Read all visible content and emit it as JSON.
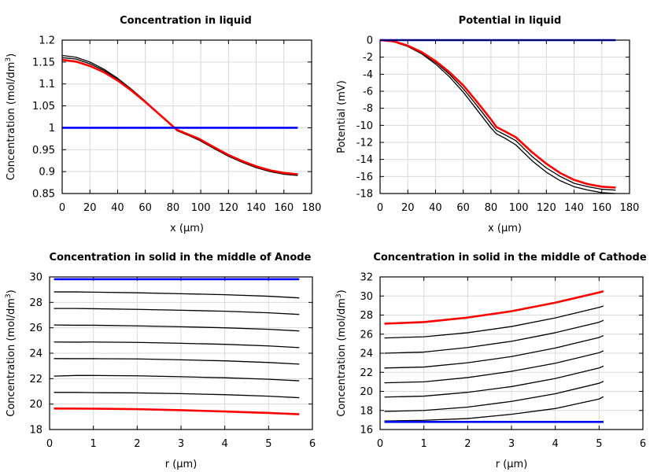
{
  "chart_data": [
    {
      "type": "line",
      "title": "Concentration in liquid",
      "xlabel": "x (µm)",
      "ylabel_main": "Concentration (mol/dm",
      "ylabel_sup": "3",
      "ylabel_tail": ")",
      "xlim": [
        0,
        180
      ],
      "ylim": [
        0.85,
        1.2
      ],
      "xticks": [
        0,
        20,
        40,
        60,
        80,
        100,
        120,
        140,
        160,
        180
      ],
      "yticks": [
        0.85,
        0.9,
        0.95,
        1,
        1.05,
        1.1,
        1.15,
        1.2
      ],
      "ytick_labels": [
        "0.85",
        "0.9",
        "0.95",
        "1",
        "1.05",
        "1.1",
        "1.15",
        "1.2"
      ],
      "grid": true,
      "series": [
        {
          "color": "#000000",
          "width": 1.3,
          "x": [
            0,
            10,
            20,
            30,
            40,
            50,
            60,
            70,
            80,
            83,
            90,
            98,
            110,
            120,
            130,
            140,
            150,
            160,
            170
          ],
          "y": [
            1.165,
            1.161,
            1.15,
            1.134,
            1.113,
            1.088,
            1.061,
            1.031,
            1.003,
            0.993,
            0.984,
            0.973,
            0.952,
            0.935,
            0.921,
            0.909,
            0.9,
            0.894,
            0.891
          ]
        },
        {
          "color": "#000000",
          "width": 1.3,
          "x": [
            0,
            10,
            20,
            30,
            40,
            50,
            60,
            70,
            80,
            83,
            90,
            98,
            110,
            120,
            130,
            140,
            150,
            160,
            170
          ],
          "y": [
            1.16,
            1.157,
            1.146,
            1.131,
            1.111,
            1.087,
            1.06,
            1.031,
            1.003,
            0.994,
            0.985,
            0.975,
            0.954,
            0.937,
            0.923,
            0.911,
            0.902,
            0.895,
            0.893
          ]
        },
        {
          "color": "#ff0000",
          "width": 2.6,
          "x": [
            0,
            10,
            20,
            30,
            40,
            50,
            60,
            70,
            80,
            83,
            90,
            98,
            110,
            120,
            130,
            140,
            150,
            160,
            170
          ],
          "y": [
            1.155,
            1.151,
            1.141,
            1.127,
            1.108,
            1.085,
            1.059,
            1.031,
            1.003,
            0.995,
            0.986,
            0.976,
            0.955,
            0.938,
            0.924,
            0.912,
            0.903,
            0.897,
            0.894
          ]
        },
        {
          "color": "#0000ff",
          "width": 2.6,
          "x": [
            0,
            170
          ],
          "y": [
            1.0,
            1.0
          ]
        }
      ]
    },
    {
      "type": "line",
      "title": "Potential in liquid",
      "xlabel": "x (µm)",
      "ylabel_main": "Potential (mV)",
      "ylabel_sup": "",
      "ylabel_tail": "",
      "xlim": [
        0,
        180
      ],
      "ylim": [
        -18,
        0
      ],
      "xticks": [
        0,
        20,
        40,
        60,
        80,
        100,
        120,
        140,
        160,
        180
      ],
      "yticks": [
        0,
        -2,
        -4,
        -6,
        -8,
        -10,
        -12,
        -14,
        -16,
        -18
      ],
      "ytick_labels": [
        "0",
        "-2",
        "-4",
        "-6",
        "-8",
        "-10",
        "-12",
        "-14",
        "-16",
        "-18"
      ],
      "grid": true,
      "series": [
        {
          "color": "#000000",
          "width": 1.3,
          "x": [
            0,
            10,
            20,
            30,
            40,
            50,
            60,
            70,
            80,
            84,
            90,
            98,
            110,
            120,
            130,
            140,
            150,
            160,
            170
          ],
          "y": [
            0,
            -0.2,
            -0.75,
            -1.6,
            -2.8,
            -4.3,
            -6.1,
            -8.2,
            -10.3,
            -11,
            -11.5,
            -12.3,
            -14.2,
            -15.5,
            -16.5,
            -17.2,
            -17.6,
            -17.9,
            -18.0
          ]
        },
        {
          "color": "#000000",
          "width": 1.3,
          "x": [
            0,
            10,
            20,
            30,
            40,
            50,
            60,
            70,
            80,
            84,
            90,
            98,
            110,
            120,
            130,
            140,
            150,
            160,
            170
          ],
          "y": [
            0,
            -0.18,
            -0.7,
            -1.5,
            -2.6,
            -4.0,
            -5.7,
            -7.7,
            -9.8,
            -10.6,
            -11.1,
            -11.8,
            -13.7,
            -15.0,
            -16.0,
            -16.8,
            -17.2,
            -17.5,
            -17.6
          ]
        },
        {
          "color": "#ff0000",
          "width": 2.6,
          "x": [
            0,
            10,
            20,
            30,
            40,
            50,
            60,
            70,
            80,
            84,
            90,
            98,
            110,
            120,
            130,
            140,
            150,
            160,
            170
          ],
          "y": [
            0,
            -0.15,
            -0.65,
            -1.4,
            -2.45,
            -3.75,
            -5.3,
            -7.25,
            -9.3,
            -10.2,
            -10.7,
            -11.4,
            -13.2,
            -14.5,
            -15.6,
            -16.4,
            -16.9,
            -17.2,
            -17.3
          ]
        },
        {
          "color": "#0000ff",
          "width": 2.6,
          "x": [
            0,
            170
          ],
          "y": [
            0,
            0
          ]
        }
      ]
    },
    {
      "type": "line",
      "title": "Concentration in solid in the middle of Anode",
      "xlabel": "r (µm)",
      "ylabel_main": "Concentration (mol/dm",
      "ylabel_sup": "3",
      "ylabel_tail": ")",
      "xlim": [
        0,
        6
      ],
      "ylim": [
        18,
        30
      ],
      "xticks": [
        0,
        1,
        2,
        3,
        4,
        5,
        6
      ],
      "yticks": [
        18,
        20,
        22,
        24,
        26,
        28,
        30
      ],
      "ytick_labels": [
        "18",
        "20",
        "22",
        "24",
        "26",
        "28",
        "30"
      ],
      "grid": true,
      "series": [
        {
          "color": "#0000ff",
          "width": 2.6,
          "x": [
            0.1,
            5.7
          ],
          "y": [
            29.82,
            29.82
          ]
        },
        {
          "color": "#000000",
          "width": 1.3,
          "x": [
            0.1,
            0.6,
            1,
            2,
            3,
            4,
            5,
            5.7
          ],
          "y": [
            28.82,
            28.82,
            28.8,
            28.75,
            28.68,
            28.6,
            28.48,
            28.35
          ]
        },
        {
          "color": "#000000",
          "width": 1.3,
          "x": [
            0.1,
            0.6,
            1,
            2,
            3,
            4,
            5,
            5.7
          ],
          "y": [
            27.52,
            27.52,
            27.5,
            27.45,
            27.38,
            27.3,
            27.18,
            27.05
          ]
        },
        {
          "color": "#000000",
          "width": 1.3,
          "x": [
            0.1,
            0.6,
            1,
            2,
            3,
            4,
            5,
            5.7
          ],
          "y": [
            26.22,
            26.2,
            26.2,
            26.15,
            26.08,
            26.0,
            25.88,
            25.75
          ]
        },
        {
          "color": "#000000",
          "width": 1.3,
          "x": [
            0.1,
            0.6,
            1,
            2,
            3,
            4,
            5,
            5.7
          ],
          "y": [
            24.88,
            24.87,
            24.88,
            24.85,
            24.78,
            24.7,
            24.57,
            24.44
          ]
        },
        {
          "color": "#000000",
          "width": 1.3,
          "x": [
            0.1,
            0.6,
            1,
            2,
            3,
            4,
            5,
            5.7
          ],
          "y": [
            23.58,
            23.57,
            23.57,
            23.55,
            23.48,
            23.4,
            23.27,
            23.14
          ]
        },
        {
          "color": "#000000",
          "width": 1.3,
          "x": [
            0.1,
            0.6,
            1,
            2,
            3,
            4,
            5,
            5.7
          ],
          "y": [
            22.2,
            22.25,
            22.25,
            22.22,
            22.15,
            22.07,
            21.95,
            21.83
          ]
        },
        {
          "color": "#000000",
          "width": 1.3,
          "x": [
            0.1,
            0.6,
            1,
            2,
            3,
            4,
            5,
            5.7
          ],
          "y": [
            20.92,
            20.92,
            20.9,
            20.88,
            20.82,
            20.74,
            20.62,
            20.5
          ]
        },
        {
          "color": "#ff0000",
          "width": 2.6,
          "x": [
            0.1,
            1,
            2,
            3,
            4,
            5,
            5.7
          ],
          "y": [
            19.65,
            19.64,
            19.6,
            19.52,
            19.42,
            19.3,
            19.2
          ]
        }
      ]
    },
    {
      "type": "line",
      "title": "Concentration in solid in the middle of Cathode",
      "xlabel": "r (µm)",
      "ylabel_main": "Concentration (mol/dm",
      "ylabel_sup": "3",
      "ylabel_tail": ")",
      "xlim": [
        0,
        6
      ],
      "ylim": [
        16,
        32
      ],
      "xticks": [
        0,
        1,
        2,
        3,
        4,
        5,
        6
      ],
      "yticks": [
        16,
        18,
        20,
        22,
        24,
        26,
        28,
        30,
        32
      ],
      "ytick_labels": [
        "16",
        "18",
        "20",
        "22",
        "24",
        "26",
        "28",
        "30",
        "32"
      ],
      "grid": true,
      "series": [
        {
          "color": "#ff0000",
          "width": 2.6,
          "x": [
            0.1,
            1,
            2,
            3,
            4,
            5,
            5.1
          ],
          "y": [
            27.1,
            27.26,
            27.74,
            28.4,
            29.3,
            30.37,
            30.5
          ]
        },
        {
          "color": "#000000",
          "width": 1.3,
          "x": [
            0.1,
            1,
            2,
            3,
            4,
            5,
            5.1
          ],
          "y": [
            25.6,
            25.72,
            26.15,
            26.8,
            27.7,
            28.8,
            28.95
          ]
        },
        {
          "color": "#000000",
          "width": 1.3,
          "x": [
            0.1,
            1,
            2,
            3,
            4,
            5,
            5.1
          ],
          "y": [
            24.0,
            24.12,
            24.6,
            25.25,
            26.15,
            27.25,
            27.45
          ]
        },
        {
          "color": "#000000",
          "width": 1.3,
          "x": [
            0.1,
            1,
            2,
            3,
            4,
            5,
            5.1
          ],
          "y": [
            22.45,
            22.55,
            23.0,
            23.65,
            24.55,
            25.65,
            25.85
          ]
        },
        {
          "color": "#000000",
          "width": 1.3,
          "x": [
            0.1,
            1,
            2,
            3,
            4,
            5,
            5.1
          ],
          "y": [
            20.9,
            21.0,
            21.45,
            22.1,
            22.95,
            24.05,
            24.25
          ]
        },
        {
          "color": "#000000",
          "width": 1.3,
          "x": [
            0.1,
            1,
            2,
            3,
            4,
            5,
            5.1
          ],
          "y": [
            19.4,
            19.5,
            19.9,
            20.5,
            21.35,
            22.45,
            22.65
          ]
        },
        {
          "color": "#000000",
          "width": 1.3,
          "x": [
            0.1,
            1,
            2,
            3,
            4,
            5,
            5.1
          ],
          "y": [
            17.9,
            18.0,
            18.35,
            18.95,
            19.75,
            20.85,
            21.05
          ]
        },
        {
          "color": "#000000",
          "width": 1.3,
          "x": [
            0.1,
            1,
            2,
            3,
            4,
            5,
            5.1
          ],
          "y": [
            16.9,
            16.97,
            17.15,
            17.6,
            18.2,
            19.2,
            19.45
          ]
        },
        {
          "color": "#0000ff",
          "width": 2.6,
          "x": [
            0.1,
            5.1
          ],
          "y": [
            16.8,
            16.8
          ]
        }
      ]
    }
  ]
}
